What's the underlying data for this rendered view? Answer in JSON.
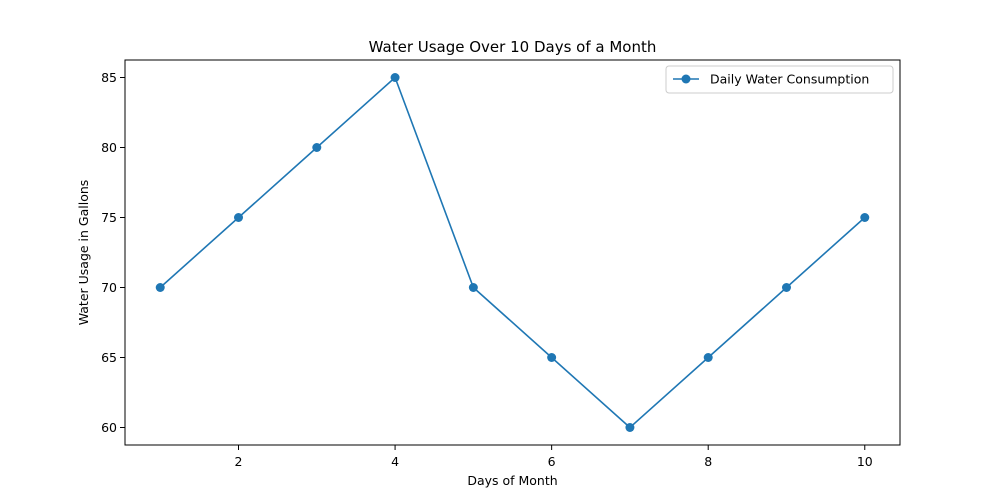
{
  "chart_data": {
    "type": "line",
    "title": "Water Usage Over 10 Days of a Month",
    "xlabel": "Days of Month",
    "ylabel": "Water Usage in Gallons",
    "x": [
      1,
      2,
      3,
      4,
      5,
      6,
      7,
      8,
      9,
      10
    ],
    "series": [
      {
        "name": "Daily Water Consumption",
        "values": [
          70,
          75,
          80,
          85,
          70,
          65,
          60,
          65,
          70,
          75
        ],
        "color": "#1f77b4",
        "marker": "circle"
      }
    ],
    "xlim": [
      0.55,
      10.45
    ],
    "ylim": [
      58.75,
      86.25
    ],
    "xticks": [
      2,
      4,
      6,
      8,
      10
    ],
    "yticks": [
      60,
      65,
      70,
      75,
      80,
      85
    ],
    "grid": false,
    "legend_position": "top-right"
  }
}
